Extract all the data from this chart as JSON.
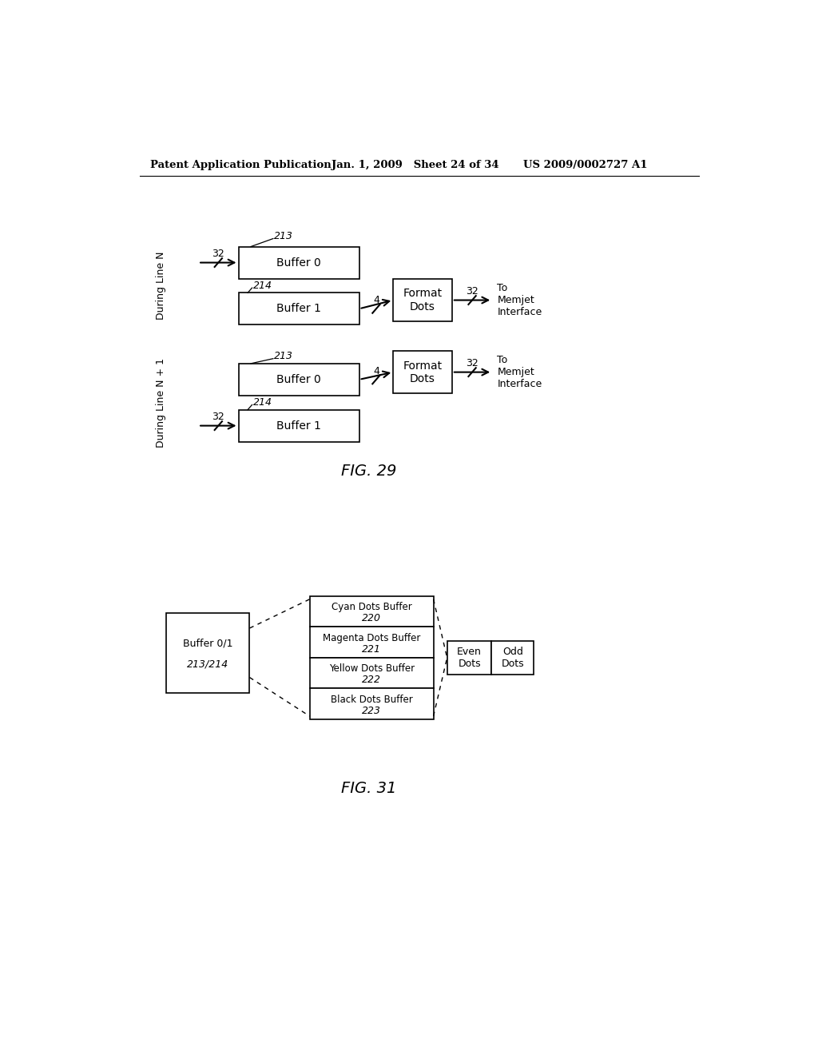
{
  "bg_color": "#ffffff",
  "header_left": "Patent Application Publication",
  "header_mid": "Jan. 1, 2009   Sheet 24 of 34",
  "header_right": "US 2009/0002727 A1",
  "fig29_label": "FIG. 29",
  "fig31_label": "FIG. 31",
  "fig29": {
    "top_section_label": "During Line N",
    "bottom_section_label": "During Line N + 1",
    "buffer0_top_text": "Buffer 0",
    "buffer1_top_text": "Buffer 1",
    "buffer0_bot_text": "Buffer 0",
    "buffer1_bot_text": "Buffer 1",
    "format_dots_top": "Format\nDots",
    "format_dots_bot": "Format\nDots",
    "to_memjet_top": "To\nMemjet\nInterface",
    "to_memjet_bot": "To\nMemjet\nInterface",
    "label_213_1": "213",
    "label_214_1": "214",
    "label_213_2": "213",
    "label_214_2": "214"
  },
  "fig31": {
    "buffer_title": "Buffer 0/1",
    "buffer_num": "213/214",
    "cyan_title": "Cyan Dots Buffer",
    "cyan_num": "220",
    "magenta_title": "Magenta Dots Buffer",
    "magenta_num": "221",
    "yellow_title": "Yellow Dots Buffer",
    "yellow_num": "222",
    "black_title": "Black Dots Buffer",
    "black_num": "223",
    "even_text": "Even\nDots",
    "odd_text": "Odd\nDots"
  }
}
